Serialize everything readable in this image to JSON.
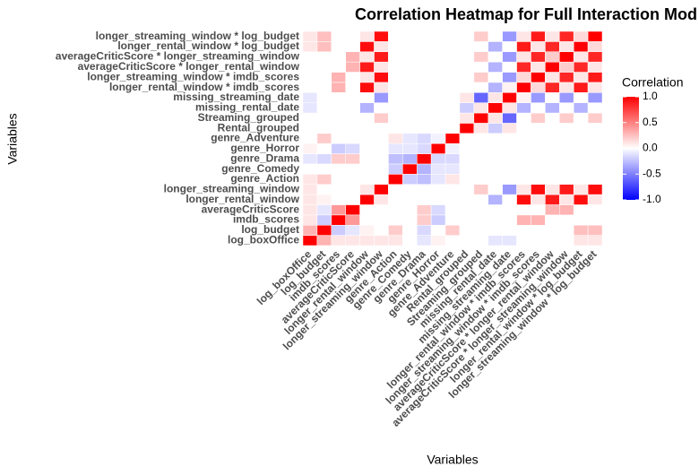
{
  "chart_data": {
    "type": "heatmap",
    "title": "Correlation Heatmap for Full Interaction Mod",
    "x_label": "Variables",
    "y_label": "Variables",
    "categories": [
      "log_boxOffice",
      "log_budget",
      "imdb_scores",
      "averageCriticScore",
      "longer_rental_window",
      "longer_streaming_window",
      "genre_Action",
      "genre_Comedy",
      "genre_Drama",
      "genre_Horror",
      "genre_Adventure",
      "Rental_grouped",
      "Streaming_grouped",
      "missing_rental_date",
      "missing_streaming_date",
      "longer_rental_window * imdb_scores",
      "longer_streaming_window * imdb_scores",
      "averageCriticScore * longer_rental_window",
      "averageCriticScore * longer_streaming_window",
      "longer_rental_window * log_budget",
      "longer_streaming_window * log_budget"
    ],
    "values": [
      [
        1,
        0.3,
        0.1,
        0.1,
        0.1,
        0.1,
        0.1,
        0,
        -0.1,
        0.05,
        0,
        0,
        0,
        -0.1,
        -0.1,
        0,
        0,
        0,
        0,
        0.1,
        0.1
      ],
      [
        0.3,
        1,
        -0.2,
        -0.1,
        0.05,
        0,
        0.2,
        0,
        -0.15,
        0,
        0.2,
        0,
        0,
        0,
        0,
        0,
        0,
        0,
        0,
        0.25,
        0.25
      ],
      [
        0.1,
        -0.2,
        1,
        0.4,
        0,
        0,
        0,
        0,
        0.2,
        -0.2,
        0,
        0,
        0,
        0,
        0,
        0.3,
        0.3,
        0,
        0,
        0,
        0
      ],
      [
        0.1,
        -0.1,
        0.4,
        1,
        0,
        0,
        0,
        0,
        0.2,
        -0.15,
        0,
        0,
        0,
        0,
        0,
        0,
        0,
        0.3,
        0.3,
        0,
        0
      ],
      [
        0.1,
        0.05,
        0,
        0,
        1,
        0.1,
        0,
        0,
        0,
        0,
        0,
        0,
        0,
        -0.3,
        0,
        0.95,
        0.1,
        0.9,
        0.1,
        0.95,
        0.1
      ],
      [
        0.1,
        0,
        0,
        0,
        0.1,
        1,
        0,
        0,
        0,
        0,
        0,
        0,
        0.2,
        0,
        -0.4,
        0.1,
        0.95,
        0.1,
        0.9,
        0.1,
        0.95
      ],
      [
        0.1,
        0.2,
        0,
        0,
        0,
        0,
        1,
        -0.2,
        -0.25,
        -0.1,
        0.1,
        0,
        0,
        0,
        0,
        0,
        0,
        0,
        0,
        0,
        0
      ],
      [
        0,
        0,
        0,
        0,
        0,
        0,
        -0.2,
        1,
        -0.3,
        -0.1,
        -0.1,
        0,
        0,
        0,
        0,
        0,
        0,
        0,
        0,
        0,
        0
      ],
      [
        -0.1,
        -0.15,
        0.2,
        0.2,
        0,
        0,
        -0.25,
        -0.3,
        1,
        -0.15,
        -0.15,
        0,
        0,
        0,
        0,
        0,
        0,
        0,
        0,
        0,
        0
      ],
      [
        0.05,
        0,
        -0.2,
        -0.15,
        0,
        0,
        -0.1,
        -0.1,
        -0.15,
        1,
        -0.05,
        0,
        0,
        0,
        0,
        0,
        0,
        0,
        0,
        0,
        0
      ],
      [
        0,
        0.2,
        0,
        0,
        0,
        0,
        0.1,
        -0.1,
        -0.15,
        -0.05,
        1,
        0,
        0,
        0,
        0,
        0,
        0,
        0,
        0,
        0,
        0
      ],
      [
        0,
        0,
        0,
        0,
        0,
        0,
        0,
        0,
        0,
        0,
        0,
        1,
        0.1,
        -0.2,
        0.1,
        0,
        0,
        0,
        0,
        0,
        0
      ],
      [
        0,
        0,
        0,
        0,
        0,
        0.2,
        0,
        0,
        0,
        0,
        0,
        0.1,
        1,
        0.1,
        -0.6,
        0,
        0.2,
        0,
        0.2,
        0,
        0.2
      ],
      [
        -0.1,
        0,
        0,
        0,
        -0.3,
        0,
        0,
        0,
        0,
        0,
        0,
        -0.2,
        0.1,
        1,
        0.1,
        -0.3,
        0,
        -0.3,
        0,
        -0.3,
        0
      ],
      [
        -0.1,
        0,
        0,
        0,
        0,
        -0.4,
        0,
        0,
        0,
        0,
        0,
        0.1,
        -0.6,
        0.1,
        1,
        0.05,
        -0.4,
        0,
        -0.4,
        0,
        -0.4
      ],
      [
        0,
        0,
        0.3,
        0,
        0.95,
        0.1,
        0,
        0,
        0,
        0,
        0,
        0,
        0,
        -0.3,
        0.05,
        1,
        0.15,
        0.85,
        0.1,
        0.9,
        0.1
      ],
      [
        0,
        0,
        0.3,
        0,
        0.1,
        0.95,
        0,
        0,
        0,
        0,
        0,
        0,
        0.2,
        0,
        -0.4,
        0.15,
        1,
        0.1,
        0.85,
        0.1,
        0.9
      ],
      [
        0,
        0,
        0,
        0.3,
        0.9,
        0.1,
        0,
        0,
        0,
        0,
        0,
        0,
        0,
        -0.3,
        0,
        0.85,
        0.1,
        1,
        0.2,
        0.85,
        0.1
      ],
      [
        0,
        0,
        0,
        0.3,
        0.1,
        0.9,
        0,
        0,
        0,
        0,
        0,
        0,
        0.2,
        0,
        -0.4,
        0.1,
        0.85,
        0.2,
        1,
        0.1,
        0.85
      ],
      [
        0.1,
        0.25,
        0,
        0,
        0.95,
        0.1,
        0,
        0,
        0,
        0,
        0,
        0,
        0,
        -0.3,
        0,
        0.9,
        0.1,
        0.85,
        0.1,
        1,
        0.15
      ],
      [
        0.1,
        0.25,
        0,
        0,
        0.1,
        0.95,
        0,
        0,
        0,
        0,
        0,
        0,
        0.2,
        0,
        -0.4,
        0.1,
        0.9,
        0.1,
        0.85,
        0.15,
        1
      ]
    ],
    "legend_title": "Correlation",
    "legend_lim": [
      -1,
      1
    ],
    "legend_ticks": [
      {
        "value": 1,
        "label": "1.0"
      },
      {
        "value": 0.5,
        "label": "0.5"
      },
      {
        "value": 0,
        "label": "0.0"
      },
      {
        "value": -0.5,
        "label": "-0.5"
      },
      {
        "value": -1,
        "label": "-1.0"
      }
    ],
    "low_color": "#0000ff",
    "mid_color": "#ffffff",
    "high_color": "#ff0000"
  }
}
